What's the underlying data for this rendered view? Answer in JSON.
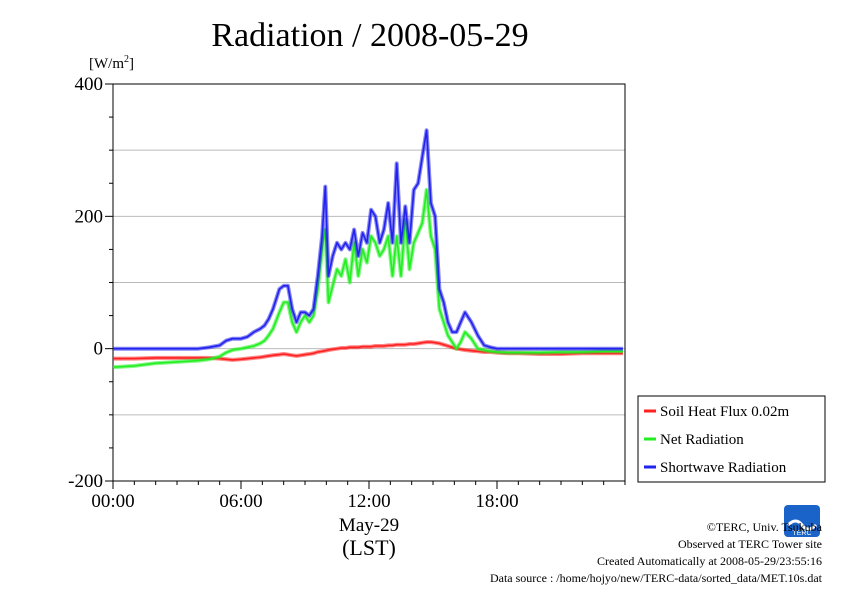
{
  "chart_data": {
    "type": "line",
    "title": "Radiation / 2008-05-29",
    "unit_label_prefix": "[W/m",
    "unit_label_exp": "2",
    "unit_label_suffix": "]",
    "ylim": [
      -200,
      400
    ],
    "yticks": [
      -200,
      0,
      200,
      400
    ],
    "xlim": [
      0,
      24
    ],
    "xticks": [
      0,
      6,
      12,
      18
    ],
    "xtick_labels": [
      "00:00",
      "06:00",
      "12:00",
      "18:00"
    ],
    "date_label": "May-29",
    "xlabel": "(LST)",
    "grid": true,
    "legend_placement": "right",
    "x": [
      0,
      1,
      2,
      3,
      4,
      4.5,
      5,
      5.3,
      5.6,
      6,
      6.3,
      6.6,
      6.9,
      7.1,
      7.3,
      7.5,
      7.8,
      8,
      8.2,
      8.4,
      8.6,
      8.8,
      9,
      9.2,
      9.4,
      9.6,
      9.8,
      9.95,
      10.1,
      10.3,
      10.5,
      10.7,
      10.9,
      11.1,
      11.3,
      11.5,
      11.7,
      11.9,
      12.1,
      12.3,
      12.5,
      12.7,
      12.9,
      13.1,
      13.3,
      13.5,
      13.7,
      13.9,
      14.1,
      14.3,
      14.5,
      14.7,
      14.9,
      15.1,
      15.3,
      15.5,
      15.7,
      15.9,
      16.1,
      16.3,
      16.5,
      16.8,
      17.1,
      17.4,
      17.7,
      18,
      18.5,
      19,
      20,
      21,
      22,
      23,
      23.9
    ],
    "series": [
      {
        "name": "Soil Heat Flux 0.02m",
        "color": "#ff2020",
        "values": [
          -15,
          -15,
          -14,
          -14,
          -14,
          -14,
          -15,
          -16,
          -17,
          -16,
          -15,
          -14,
          -13,
          -12,
          -11,
          -10,
          -9,
          -8,
          -9,
          -10,
          -11,
          -10,
          -9,
          -8,
          -7,
          -5,
          -4,
          -3,
          -2,
          -1,
          0,
          1,
          1,
          2,
          2,
          2,
          3,
          3,
          3,
          4,
          4,
          4,
          5,
          5,
          6,
          6,
          6,
          7,
          7,
          8,
          9,
          10,
          10,
          9,
          8,
          6,
          4,
          2,
          0,
          -1,
          -2,
          -3,
          -4,
          -5,
          -5,
          -6,
          -7,
          -7,
          -8,
          -8,
          -7,
          -7,
          -7
        ]
      },
      {
        "name": "Net Radiation",
        "color": "#22ee22",
        "values": [
          -28,
          -26,
          -22,
          -20,
          -18,
          -16,
          -12,
          -6,
          -2,
          0,
          2,
          4,
          8,
          12,
          20,
          30,
          55,
          70,
          70,
          40,
          25,
          40,
          50,
          40,
          50,
          90,
          150,
          180,
          70,
          95,
          120,
          110,
          135,
          100,
          160,
          110,
          150,
          130,
          170,
          160,
          140,
          150,
          170,
          110,
          170,
          110,
          195,
          120,
          160,
          175,
          190,
          240,
          170,
          150,
          60,
          40,
          20,
          10,
          0,
          10,
          25,
          15,
          0,
          -2,
          -4,
          -5,
          -6,
          -6,
          -6,
          -5,
          -5,
          -4,
          -4
        ]
      },
      {
        "name": "Shortwave Radiation",
        "color": "#2222ee",
        "values": [
          0,
          0,
          0,
          0,
          0,
          2,
          5,
          12,
          15,
          15,
          18,
          25,
          30,
          35,
          45,
          60,
          90,
          95,
          95,
          60,
          40,
          55,
          55,
          50,
          60,
          110,
          170,
          245,
          110,
          140,
          160,
          150,
          160,
          150,
          180,
          140,
          175,
          160,
          210,
          200,
          160,
          180,
          220,
          160,
          280,
          160,
          215,
          160,
          240,
          250,
          290,
          330,
          220,
          200,
          90,
          70,
          40,
          25,
          25,
          40,
          55,
          40,
          20,
          5,
          2,
          0,
          0,
          0,
          0,
          0,
          0,
          0,
          0
        ]
      }
    ]
  },
  "footer": {
    "copyright": "©TERC, Univ. Tsukuba",
    "observed": "Observed at TERC Tower site",
    "created": "Created Automatically at 2008-05-29/23:55:16",
    "source": "Data source : /home/hojyo/new/TERC-data/sorted_data/MET.10s.dat"
  },
  "logo": {
    "text": "TERC",
    "color": "#1a63c8"
  }
}
